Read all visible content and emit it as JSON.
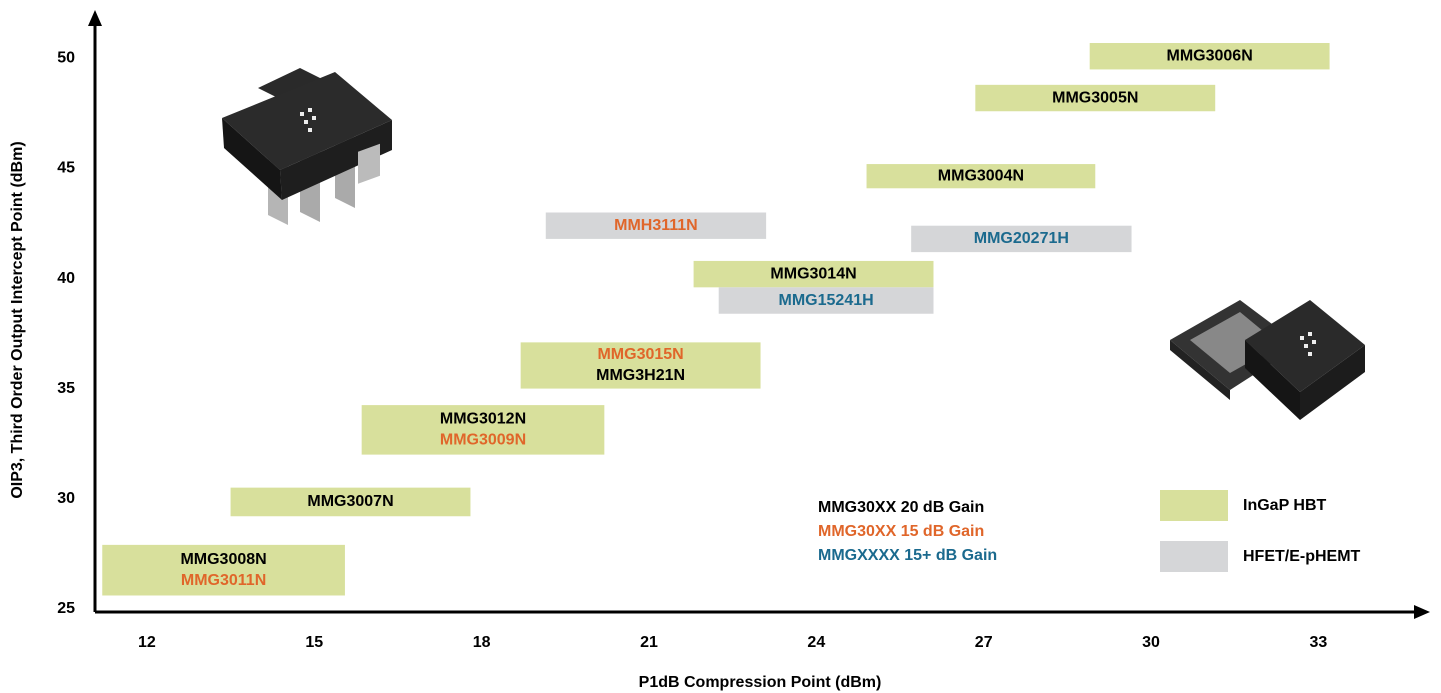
{
  "chart_data": {
    "type": "range-box",
    "x_label": "P1dB Compression Point (dBm)",
    "y_label": "OIP3, Third Order Output Intercept Point (dBm)",
    "xlim": [
      11.07,
      35.0
    ],
    "xticks": [
      12,
      15,
      18,
      21,
      24,
      27,
      30,
      33
    ],
    "ylim": [
      24.85,
      52.2
    ],
    "yticks": [
      25,
      30,
      35,
      40,
      45,
      50
    ],
    "boxes": [
      {
        "labels": [
          "MMG3006N"
        ],
        "label_colors": [
          "#000000"
        ],
        "fill": "#d8e09c",
        "x": [
          28.9,
          33.2
        ],
        "y": [
          49.5,
          50.7
        ]
      },
      {
        "labels": [
          "MMG3005N"
        ],
        "label_colors": [
          "#000000"
        ],
        "fill": "#d8e09c",
        "x": [
          26.85,
          31.15
        ],
        "y": [
          47.6,
          48.8
        ]
      },
      {
        "labels": [
          "MMG3004N"
        ],
        "label_colors": [
          "#000000"
        ],
        "fill": "#d8e09c",
        "x": [
          24.9,
          29.0
        ],
        "y": [
          44.1,
          45.2
        ]
      },
      {
        "labels": [
          "MMH3111N"
        ],
        "label_colors": [
          "#e0662a"
        ],
        "fill": "#d5d6d8",
        "x": [
          19.15,
          23.1
        ],
        "y": [
          41.8,
          43.0
        ]
      },
      {
        "labels": [
          "MMG20271H"
        ],
        "label_colors": [
          "#1b6a8e"
        ],
        "fill": "#d5d6d8",
        "x": [
          25.7,
          29.65
        ],
        "y": [
          41.2,
          42.4
        ]
      },
      {
        "labels": [
          "MMG3014N"
        ],
        "label_colors": [
          "#000000"
        ],
        "fill": "#d8e09c",
        "x": [
          21.8,
          26.1
        ],
        "y": [
          39.6,
          40.8
        ]
      },
      {
        "labels": [
          "MMG15241H"
        ],
        "label_colors": [
          "#1b6a8e"
        ],
        "fill": "#d5d6d8",
        "x": [
          22.25,
          26.1
        ],
        "y": [
          38.4,
          39.6
        ]
      },
      {
        "labels": [
          "MMG3015N",
          "MMG3H21N"
        ],
        "label_colors": [
          "#e0662a",
          "#000000"
        ],
        "fill": "#d8e09c",
        "x": [
          18.7,
          23.0
        ],
        "y": [
          35.0,
          37.1
        ]
      },
      {
        "labels": [
          "MMG3012N",
          "MMG3009N"
        ],
        "label_colors": [
          "#000000",
          "#e0662a"
        ],
        "fill": "#d8e09c",
        "x": [
          15.85,
          20.2
        ],
        "y": [
          32.0,
          34.25
        ]
      },
      {
        "labels": [
          "MMG3007N"
        ],
        "label_colors": [
          "#000000"
        ],
        "fill": "#d8e09c",
        "x": [
          13.5,
          17.8
        ],
        "y": [
          29.2,
          30.5
        ]
      },
      {
        "labels": [
          "MMG3008N",
          "MMG3011N"
        ],
        "label_colors": [
          "#000000",
          "#e0662a"
        ],
        "fill": "#d8e09c",
        "x": [
          11.2,
          15.55
        ],
        "y": [
          25.6,
          27.9
        ]
      }
    ],
    "legend": {
      "text_entries": [
        {
          "text": "MMG30XX 20 dB Gain",
          "color": "#000000"
        },
        {
          "text": "MMG30XX 15 dB Gain",
          "color": "#e0662a"
        },
        {
          "text": "MMGXXXX 15+ dB Gain",
          "color": "#1b6a8e"
        }
      ],
      "swatches": [
        {
          "label": "InGaP HBT",
          "color": "#d8e09c"
        },
        {
          "label": "HFET/E-pHEMT",
          "color": "#d5d6d8"
        }
      ]
    }
  }
}
